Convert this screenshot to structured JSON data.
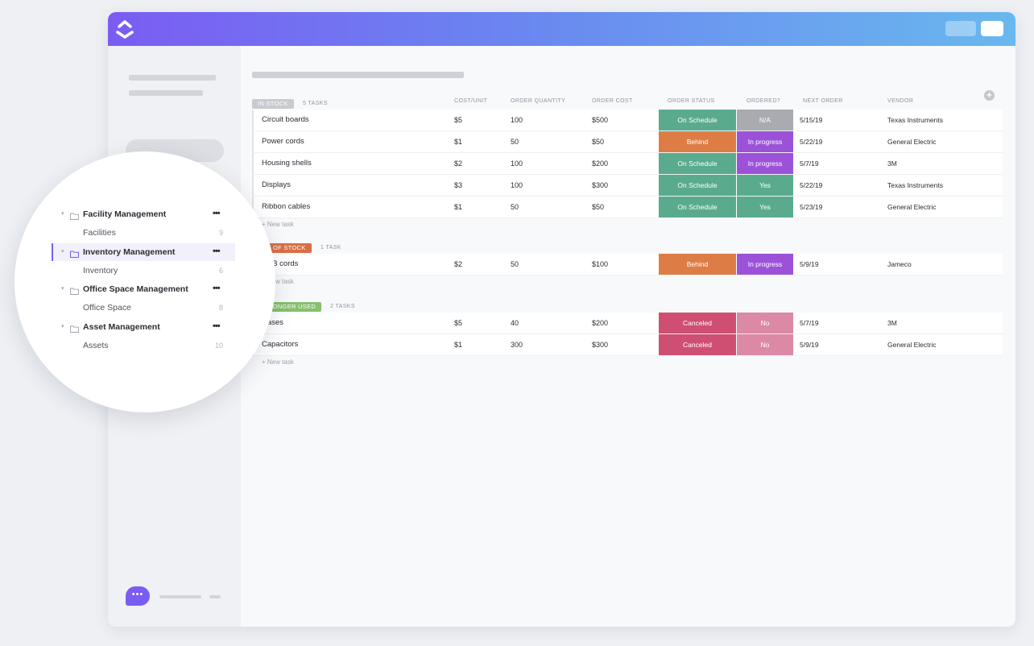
{
  "colors": {
    "on_schedule": "#5aab8e",
    "behind": "#dd7d45",
    "na": "#a9abb1",
    "in_progress": "#9c52d8",
    "yes": "#5aab8e",
    "canceled": "#cf4f72",
    "no": "#dc89a6",
    "in_stock_tag": "#c9cbd0",
    "out_of_stock_tag": "#d96f45",
    "no_longer_used_tag": "#86c06e"
  },
  "columns": [
    "COST/UNIT",
    "ORDER QUANTITY",
    "ORDER COST",
    "ORDER STATUS",
    "ORDERED?",
    "NEXT ORDER",
    "VENDOR"
  ],
  "groups": [
    {
      "tag": "IN STOCK",
      "count": "5 TASKS",
      "rows": [
        {
          "name": "Circuit boards",
          "cost": "$5",
          "qty": "100",
          "order_cost": "$500",
          "status": "On Schedule",
          "status_key": "on_schedule",
          "ordered": "N/A",
          "ordered_key": "na",
          "next": "5/15/19",
          "vendor": "Texas Instruments"
        },
        {
          "name": "Power cords",
          "cost": "$1",
          "qty": "50",
          "order_cost": "$50",
          "status": "Behind",
          "status_key": "behind",
          "ordered": "In progress",
          "ordered_key": "in_progress",
          "next": "5/22/19",
          "vendor": "General Electric"
        },
        {
          "name": "Housing shells",
          "cost": "$2",
          "qty": "100",
          "order_cost": "$200",
          "status": "On Schedule",
          "status_key": "on_schedule",
          "ordered": "In progress",
          "ordered_key": "in_progress",
          "next": "5/7/19",
          "vendor": "3M"
        },
        {
          "name": "Displays",
          "cost": "$3",
          "qty": "100",
          "order_cost": "$300",
          "status": "On Schedule",
          "status_key": "on_schedule",
          "ordered": "Yes",
          "ordered_key": "yes",
          "next": "5/22/19",
          "vendor": "Texas Instruments"
        },
        {
          "name": "Ribbon cables",
          "cost": "$1",
          "qty": "50",
          "order_cost": "$50",
          "status": "On Schedule",
          "status_key": "on_schedule",
          "ordered": "Yes",
          "ordered_key": "yes",
          "next": "5/23/19",
          "vendor": "General Electric"
        }
      ],
      "new_task": "+ New task"
    },
    {
      "tag": "OUT OF STOCK",
      "count": "1 TASK",
      "rows": [
        {
          "name": "USB cords",
          "cost": "$2",
          "qty": "50",
          "order_cost": "$100",
          "status": "Behind",
          "status_key": "behind",
          "ordered": "In progress",
          "ordered_key": "in_progress",
          "next": "5/9/19",
          "vendor": "Jameco"
        }
      ],
      "new_task": "+ New task"
    },
    {
      "tag": "NO LONGER USED",
      "count": "2 TASKS",
      "rows": [
        {
          "name": "Cases",
          "cost": "$5",
          "qty": "40",
          "order_cost": "$200",
          "status": "Canceled",
          "status_key": "canceled",
          "ordered": "No",
          "ordered_key": "no",
          "next": "5/7/19",
          "vendor": "3M"
        },
        {
          "name": "Capacitors",
          "cost": "$1",
          "qty": "300",
          "order_cost": "$300",
          "status": "Canceled",
          "status_key": "canceled",
          "ordered": "No",
          "ordered_key": "no",
          "next": "5/9/19",
          "vendor": "General Electric"
        }
      ],
      "new_task": "+ New task"
    }
  ],
  "sidebar_zoom": {
    "folders": [
      {
        "name": "Facility Management",
        "list": "Facilities",
        "count": "9",
        "active": false
      },
      {
        "name": "Inventory Management",
        "list": "Inventory",
        "count": "6",
        "active": true
      },
      {
        "name": "Office Space Management",
        "list": "Office Space",
        "count": "8",
        "active": false
      },
      {
        "name": "Asset Management",
        "list": "Assets",
        "count": "10",
        "active": false
      }
    ],
    "more_icon": "•••"
  },
  "icons": {
    "logo": "clickup-logo-icon",
    "chat": "chat-bubble-icon",
    "add_column": "plus-circle-icon",
    "folder": "folder-icon",
    "caret": "caret-down-icon"
  }
}
